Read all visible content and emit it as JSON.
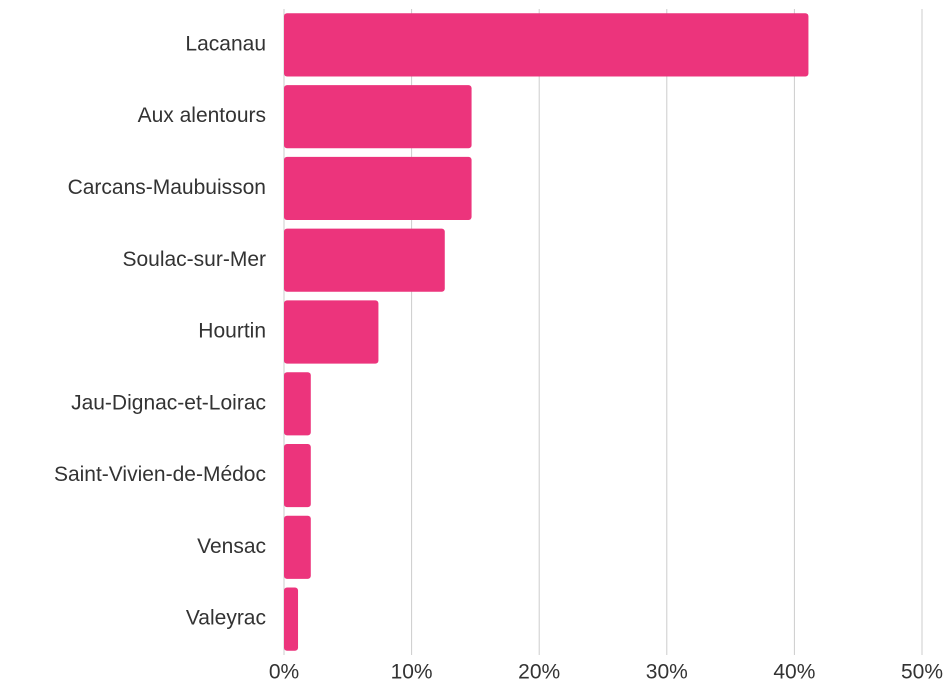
{
  "chart_data": {
    "type": "hbar",
    "categories": [
      "Lacanau",
      "Aux alentours",
      "Carcans-Maubuisson",
      "Soulac-sur-Mer",
      "Hourtin",
      "Jau-Dignac-et-Loirac",
      "Saint-Vivien-de-Médoc",
      "Vensac",
      "Valeyrac"
    ],
    "values": [
      41.1,
      14.7,
      14.7,
      12.6,
      7.4,
      2.1,
      2.1,
      2.1,
      1.1
    ],
    "color": "#ec347c",
    "xlim": [
      0,
      50
    ],
    "xticks": [
      {
        "value": 0,
        "label": "0%"
      },
      {
        "value": 10,
        "label": "10%"
      },
      {
        "value": 20,
        "label": "20%"
      },
      {
        "value": 30,
        "label": "30%"
      },
      {
        "value": 40,
        "label": "40%"
      },
      {
        "value": 50,
        "label": "50%"
      }
    ],
    "grid": true
  }
}
